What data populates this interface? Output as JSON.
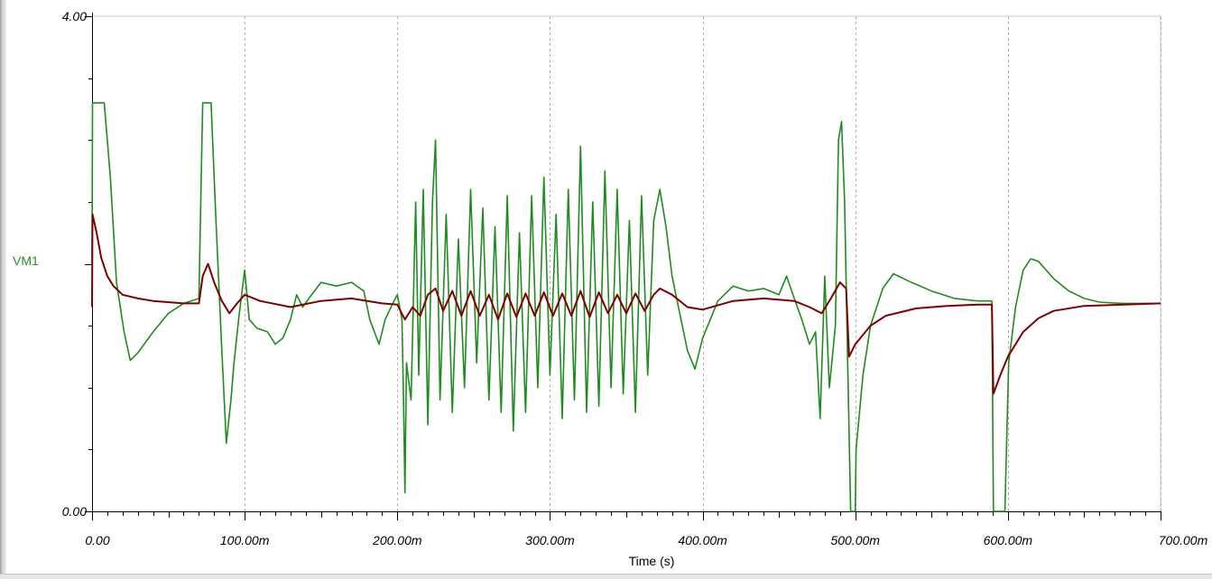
{
  "chart_data": {
    "type": "line",
    "title": "",
    "xlabel": "Time (s)",
    "ylabel": "VM1",
    "xlim": [
      0,
      0.7
    ],
    "ylim": [
      0,
      4
    ],
    "x_ticks": [
      0,
      0.1,
      0.2,
      0.3,
      0.4,
      0.5,
      0.6,
      0.7
    ],
    "x_tick_labels": [
      "0.00",
      "100.00m",
      "200.00m",
      "300.00m",
      "400.00m",
      "500.00m",
      "600.00m",
      "700.00m"
    ],
    "y_tick_labels": [
      "4.00",
      "0.00"
    ],
    "grid": "vertical dashed",
    "series": [
      {
        "color": "#1e8c1e",
        "points": [
          [
            0.0,
            2.0
          ],
          [
            0.0003,
            3.3
          ],
          [
            0.008,
            3.3
          ],
          [
            0.012,
            2.7
          ],
          [
            0.016,
            1.85
          ],
          [
            0.021,
            1.45
          ],
          [
            0.025,
            1.22
          ],
          [
            0.03,
            1.28
          ],
          [
            0.04,
            1.45
          ],
          [
            0.05,
            1.6
          ],
          [
            0.06,
            1.68
          ],
          [
            0.07,
            1.72
          ],
          [
            0.0725,
            3.3
          ],
          [
            0.078,
            3.3
          ],
          [
            0.081,
            2.4
          ],
          [
            0.085,
            1.3
          ],
          [
            0.088,
            0.55
          ],
          [
            0.091,
            0.9
          ],
          [
            0.093,
            1.2
          ],
          [
            0.096,
            1.55
          ],
          [
            0.1,
            1.95
          ],
          [
            0.103,
            1.55
          ],
          [
            0.108,
            1.48
          ],
          [
            0.115,
            1.45
          ],
          [
            0.12,
            1.35
          ],
          [
            0.125,
            1.4
          ],
          [
            0.13,
            1.55
          ],
          [
            0.134,
            1.75
          ],
          [
            0.138,
            1.65
          ],
          [
            0.142,
            1.72
          ],
          [
            0.15,
            1.85
          ],
          [
            0.16,
            1.82
          ],
          [
            0.17,
            1.85
          ],
          [
            0.178,
            1.78
          ],
          [
            0.182,
            1.55
          ],
          [
            0.188,
            1.35
          ],
          [
            0.192,
            1.55
          ],
          [
            0.197,
            1.68
          ],
          [
            0.2,
            1.75
          ],
          [
            0.203,
            1.55
          ],
          [
            0.204,
            0.92
          ],
          [
            0.205,
            0.15
          ],
          [
            0.206,
            1.2
          ],
          [
            0.209,
            0.9
          ],
          [
            0.212,
            2.5
          ],
          [
            0.214,
            1.1
          ],
          [
            0.217,
            2.6
          ],
          [
            0.22,
            0.7
          ],
          [
            0.223,
            2.5
          ],
          [
            0.225,
            3.0
          ],
          [
            0.228,
            0.9
          ],
          [
            0.232,
            2.4
          ],
          [
            0.236,
            0.8
          ],
          [
            0.24,
            2.2
          ],
          [
            0.244,
            1.0
          ],
          [
            0.248,
            2.6
          ],
          [
            0.252,
            1.2
          ],
          [
            0.256,
            2.45
          ],
          [
            0.26,
            0.9
          ],
          [
            0.264,
            2.3
          ],
          [
            0.268,
            0.8
          ],
          [
            0.272,
            2.55
          ],
          [
            0.276,
            0.65
          ],
          [
            0.28,
            2.25
          ],
          [
            0.284,
            0.8
          ],
          [
            0.288,
            2.55
          ],
          [
            0.292,
            1.0
          ],
          [
            0.296,
            2.7
          ],
          [
            0.3,
            1.1
          ],
          [
            0.304,
            2.4
          ],
          [
            0.308,
            0.75
          ],
          [
            0.312,
            2.6
          ],
          [
            0.316,
            0.9
          ],
          [
            0.32,
            2.95
          ],
          [
            0.324,
            0.8
          ],
          [
            0.328,
            2.5
          ],
          [
            0.332,
            0.85
          ],
          [
            0.336,
            2.75
          ],
          [
            0.34,
            1.0
          ],
          [
            0.344,
            2.6
          ],
          [
            0.348,
            0.95
          ],
          [
            0.352,
            2.35
          ],
          [
            0.356,
            0.8
          ],
          [
            0.36,
            2.55
          ],
          [
            0.364,
            1.1
          ],
          [
            0.368,
            2.35
          ],
          [
            0.372,
            2.6
          ],
          [
            0.376,
            2.3
          ],
          [
            0.38,
            1.9
          ],
          [
            0.385,
            1.6
          ],
          [
            0.39,
            1.3
          ],
          [
            0.395,
            1.15
          ],
          [
            0.4,
            1.4
          ],
          [
            0.41,
            1.7
          ],
          [
            0.42,
            1.82
          ],
          [
            0.43,
            1.78
          ],
          [
            0.44,
            1.8
          ],
          [
            0.45,
            1.75
          ],
          [
            0.455,
            1.9
          ],
          [
            0.46,
            1.72
          ],
          [
            0.465,
            1.55
          ],
          [
            0.47,
            1.35
          ],
          [
            0.474,
            1.45
          ],
          [
            0.477,
            0.75
          ],
          [
            0.48,
            1.9
          ],
          [
            0.483,
            1.0
          ],
          [
            0.487,
            1.5
          ],
          [
            0.489,
            3.0
          ],
          [
            0.491,
            3.15
          ],
          [
            0.493,
            2.5
          ],
          [
            0.495,
            1.2
          ],
          [
            0.497,
            0.0
          ],
          [
            0.5,
            0.0
          ],
          [
            0.5005,
            0.5
          ],
          [
            0.505,
            1.1
          ],
          [
            0.51,
            1.5
          ],
          [
            0.518,
            1.8
          ],
          [
            0.525,
            1.92
          ],
          [
            0.535,
            1.86
          ],
          [
            0.55,
            1.78
          ],
          [
            0.565,
            1.72
          ],
          [
            0.58,
            1.7
          ],
          [
            0.5895,
            1.7
          ],
          [
            0.5905,
            0.0
          ],
          [
            0.598,
            0.0
          ],
          [
            0.6005,
            1.2
          ],
          [
            0.605,
            1.65
          ],
          [
            0.61,
            1.95
          ],
          [
            0.615,
            2.04
          ],
          [
            0.62,
            2.02
          ],
          [
            0.63,
            1.88
          ],
          [
            0.64,
            1.78
          ],
          [
            0.65,
            1.72
          ],
          [
            0.66,
            1.69
          ],
          [
            0.675,
            1.68
          ],
          [
            0.7,
            1.68
          ]
        ]
      },
      {
        "color": "#800000",
        "points": [
          [
            0.0,
            1.65
          ],
          [
            0.0003,
            2.4
          ],
          [
            0.003,
            2.25
          ],
          [
            0.006,
            2.05
          ],
          [
            0.01,
            1.9
          ],
          [
            0.014,
            1.82
          ],
          [
            0.02,
            1.75
          ],
          [
            0.03,
            1.72
          ],
          [
            0.04,
            1.7
          ],
          [
            0.06,
            1.68
          ],
          [
            0.07,
            1.68
          ],
          [
            0.0725,
            1.9
          ],
          [
            0.076,
            2.0
          ],
          [
            0.08,
            1.85
          ],
          [
            0.085,
            1.7
          ],
          [
            0.09,
            1.6
          ],
          [
            0.095,
            1.68
          ],
          [
            0.1,
            1.75
          ],
          [
            0.11,
            1.7
          ],
          [
            0.13,
            1.65
          ],
          [
            0.15,
            1.7
          ],
          [
            0.17,
            1.72
          ],
          [
            0.19,
            1.68
          ],
          [
            0.2,
            1.67
          ],
          [
            0.205,
            1.55
          ],
          [
            0.21,
            1.65
          ],
          [
            0.215,
            1.58
          ],
          [
            0.22,
            1.75
          ],
          [
            0.225,
            1.8
          ],
          [
            0.23,
            1.62
          ],
          [
            0.236,
            1.78
          ],
          [
            0.242,
            1.58
          ],
          [
            0.248,
            1.78
          ],
          [
            0.254,
            1.58
          ],
          [
            0.26,
            1.75
          ],
          [
            0.266,
            1.55
          ],
          [
            0.272,
            1.76
          ],
          [
            0.278,
            1.57
          ],
          [
            0.284,
            1.76
          ],
          [
            0.29,
            1.58
          ],
          [
            0.296,
            1.77
          ],
          [
            0.302,
            1.58
          ],
          [
            0.308,
            1.76
          ],
          [
            0.314,
            1.58
          ],
          [
            0.32,
            1.78
          ],
          [
            0.326,
            1.57
          ],
          [
            0.332,
            1.77
          ],
          [
            0.338,
            1.6
          ],
          [
            0.344,
            1.75
          ],
          [
            0.35,
            1.6
          ],
          [
            0.356,
            1.76
          ],
          [
            0.362,
            1.62
          ],
          [
            0.368,
            1.75
          ],
          [
            0.372,
            1.8
          ],
          [
            0.38,
            1.75
          ],
          [
            0.39,
            1.65
          ],
          [
            0.4,
            1.63
          ],
          [
            0.42,
            1.7
          ],
          [
            0.44,
            1.72
          ],
          [
            0.46,
            1.7
          ],
          [
            0.47,
            1.65
          ],
          [
            0.478,
            1.6
          ],
          [
            0.484,
            1.72
          ],
          [
            0.49,
            1.85
          ],
          [
            0.494,
            1.8
          ],
          [
            0.496,
            1.25
          ],
          [
            0.5,
            1.35
          ],
          [
            0.51,
            1.5
          ],
          [
            0.52,
            1.58
          ],
          [
            0.54,
            1.64
          ],
          [
            0.56,
            1.66
          ],
          [
            0.58,
            1.67
          ],
          [
            0.5895,
            1.67
          ],
          [
            0.5905,
            0.95
          ],
          [
            0.595,
            1.1
          ],
          [
            0.6,
            1.25
          ],
          [
            0.61,
            1.45
          ],
          [
            0.62,
            1.56
          ],
          [
            0.63,
            1.62
          ],
          [
            0.65,
            1.66
          ],
          [
            0.7,
            1.68
          ]
        ]
      }
    ]
  }
}
